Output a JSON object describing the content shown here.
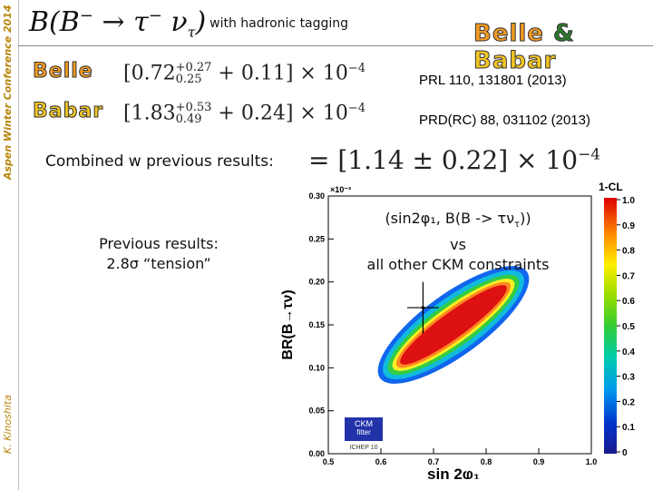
{
  "sidebar": {
    "conference": "Aspen Winter Conference 2014",
    "author": "K. Kinoshita"
  },
  "title": {
    "formula_b": "B(B",
    "formula_sup": "−",
    "formula_arrow": " → τ",
    "formula_nu": " ν",
    "formula_sub": "τ",
    "formula_close": ")",
    "subtitle": "with hadronic tagging"
  },
  "logos": {
    "belle": "Belle",
    "amp": "&",
    "babar": "Babar"
  },
  "results": {
    "belle": {
      "label": "Belle",
      "central": "[0.72",
      "err_up": "+0.27",
      "err_down": "0.25",
      "syst": " + 0.11] × 10",
      "exp": "−4",
      "reference": "PRL 110, 131801 (2013)"
    },
    "babar": {
      "label": "Babar",
      "central": "[1.83",
      "err_up": "+0.53",
      "err_down": "0.49",
      "syst": " + 0.24] × 10",
      "exp": "−4",
      "reference": "PRD(RC) 88, 031102 (2013)"
    }
  },
  "combined": {
    "text": "Combined w previous results:",
    "value": "= [1.14 ± 0.22] × 10",
    "exp": "−4"
  },
  "previous": {
    "line1": "Previous results:",
    "line2": "2.8σ “tension”"
  },
  "overlay": {
    "line1": "(sin2φ₁, B(B -> τν",
    "line1_sub": "τ",
    "line1_end": "))",
    "line2": "vs",
    "line3": "all other CKM constraints"
  },
  "chart_data": {
    "type": "heatmap",
    "xlabel": "sin 2φ₁",
    "ylabel": "BR(B→τν)",
    "y_exponent_label": "×10⁻³",
    "colorbar_label": "1-CL",
    "xlim": [
      0.5,
      1.0
    ],
    "ylim": [
      0.0,
      0.3
    ],
    "x_ticks": [
      "0.5",
      "0.6",
      "0.7",
      "0.8",
      "0.9",
      "1.0"
    ],
    "y_ticks": [
      "0.00",
      "0.05",
      "0.10",
      "0.15",
      "0.20",
      "0.25",
      "0.30"
    ],
    "colorbar_ticks": [
      "1.0",
      "0.9",
      "0.8",
      "0.7",
      "0.6",
      "0.5",
      "0.4",
      "0.3",
      "0.2",
      "0.1",
      "0"
    ],
    "measurement_point": {
      "x": 0.68,
      "y": 0.17,
      "x_err": 0.03,
      "y_err": 0.03
    },
    "logo_text": [
      "CKM",
      "fitter",
      "ICHEP 10"
    ]
  }
}
